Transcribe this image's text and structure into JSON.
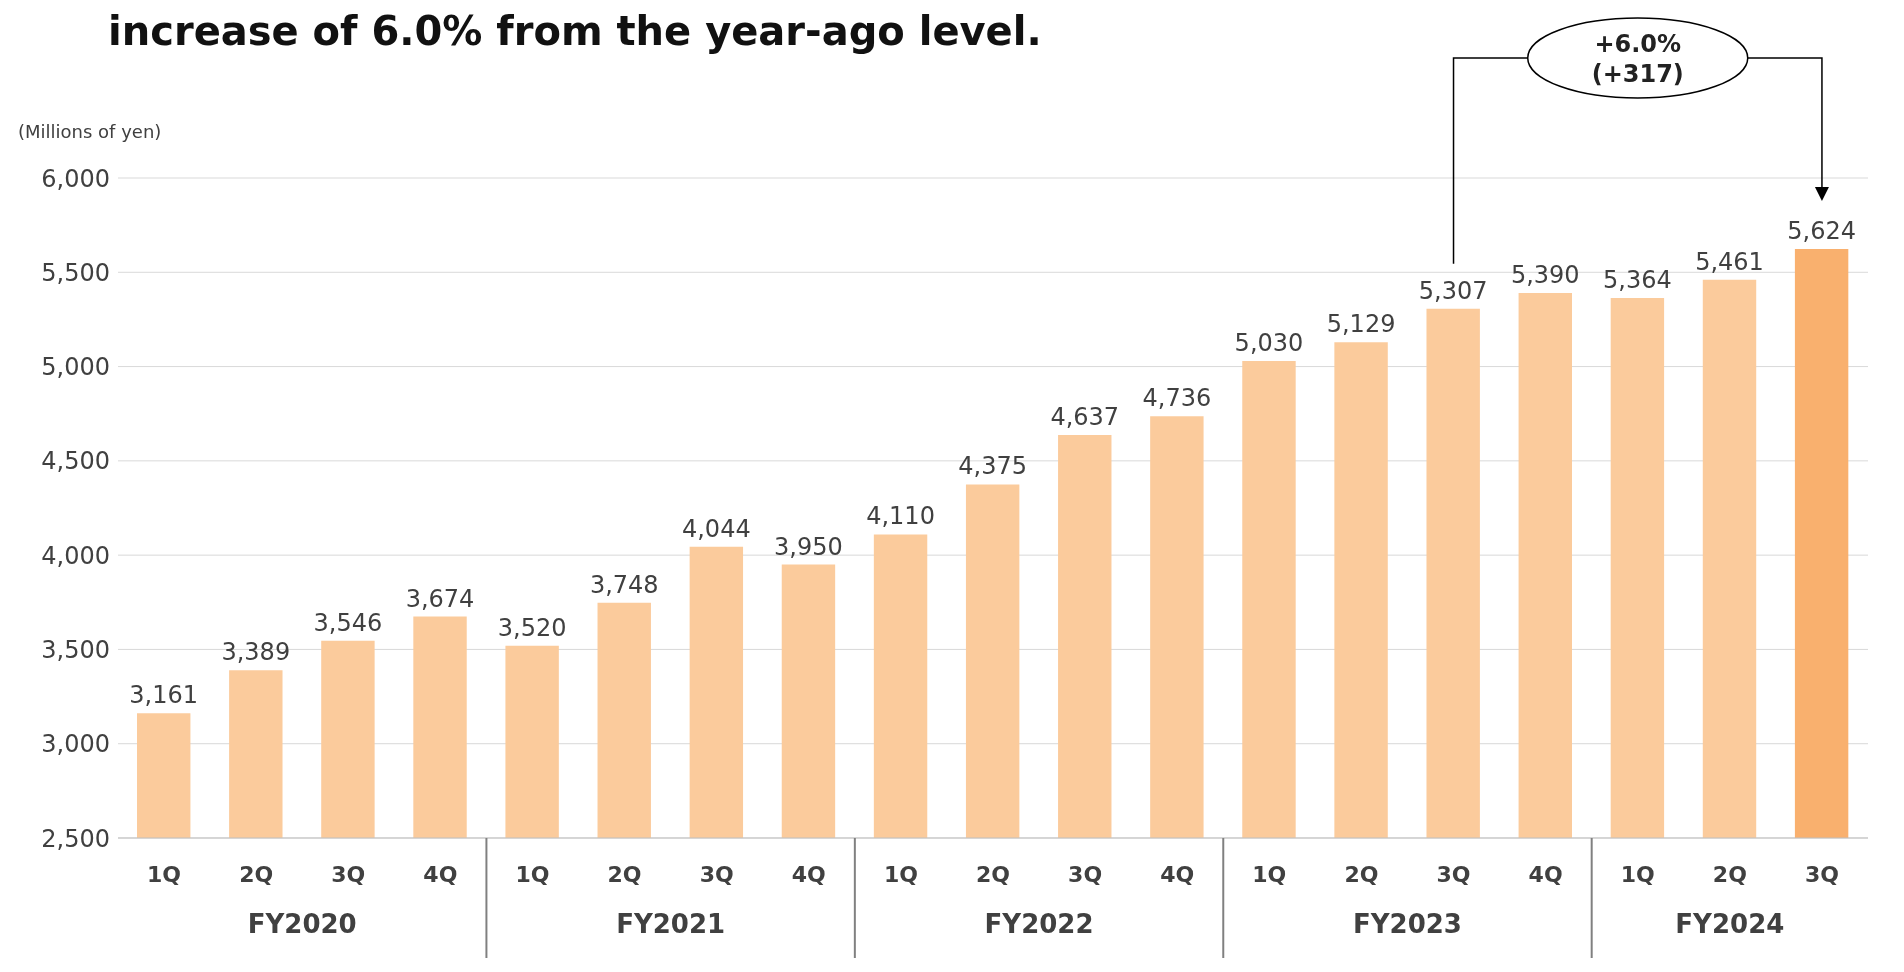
{
  "chart_data": {
    "type": "bar",
    "title": "increase of 6.0% from the year-ago level.",
    "ylabel": "(Millions of yen)",
    "categories": [
      "1Q",
      "2Q",
      "3Q",
      "4Q",
      "1Q",
      "2Q",
      "3Q",
      "4Q",
      "1Q",
      "2Q",
      "3Q",
      "4Q",
      "1Q",
      "2Q",
      "3Q",
      "4Q",
      "1Q",
      "2Q",
      "3Q"
    ],
    "values": [
      3161,
      3389,
      3546,
      3674,
      3520,
      3748,
      4044,
      3950,
      4110,
      4375,
      4637,
      4736,
      5030,
      5129,
      5307,
      5390,
      5364,
      5461,
      5624
    ],
    "colors": [
      "#fbcb9c",
      "#fbcb9c",
      "#fbcb9c",
      "#fbcb9c",
      "#fbcb9c",
      "#fbcb9c",
      "#fbcb9c",
      "#fbcb9c",
      "#fbcb9c",
      "#fbcb9c",
      "#fbcb9c",
      "#fbcb9c",
      "#fbcb9c",
      "#fbcb9c",
      "#fbcb9c",
      "#fbcb9c",
      "#fbcb9c",
      "#fbcb9c",
      "#f9b06e"
    ],
    "value_labels": [
      "3,161",
      "3,389",
      "3,546",
      "3,674",
      "3,520",
      "3,748",
      "4,044",
      "3,950",
      "4,110",
      "4,375",
      "4,637",
      "4,736",
      "5,030",
      "5,129",
      "5,307",
      "5,390",
      "5,364",
      "5,461",
      "5,624"
    ],
    "ylim": [
      2500,
      6000
    ],
    "yticks": [
      {
        "value": 2500,
        "label": "2,500"
      },
      {
        "value": 3000,
        "label": "3,000"
      },
      {
        "value": 3500,
        "label": "3,500"
      },
      {
        "value": 4000,
        "label": "4,000"
      },
      {
        "value": 4500,
        "label": "4,500"
      },
      {
        "value": 5000,
        "label": "5,000"
      },
      {
        "value": 5500,
        "label": "5,500"
      },
      {
        "value": 6000,
        "label": "6,000"
      }
    ],
    "grid": "y",
    "annotations": [
      "FY2020",
      "FY2021",
      "FY2022",
      "FY2023",
      "FY2024",
      "+6.0%",
      "(+317)"
    ]
  }
}
